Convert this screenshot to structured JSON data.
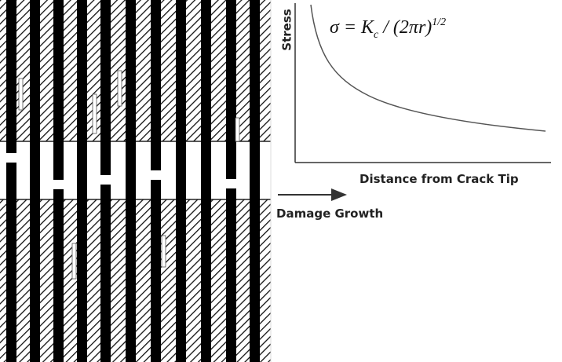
{
  "illustration": {
    "y_axis_label": "Stress",
    "x_axis_label": "Distance from Crack Tip",
    "arrow_label": "Damage Growth",
    "formula": {
      "lhs": "σ = K",
      "subscript": "c",
      "rhs": " / (2πr)",
      "superscript": "1/2"
    }
  }
}
